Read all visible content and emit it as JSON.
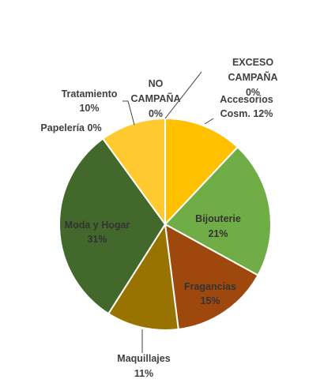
{
  "chart_data": {
    "type": "pie",
    "title": "",
    "slices": [
      {
        "label": "EXCESO CAMPAÑA",
        "value": 0,
        "value_label": "0%",
        "color": "#FFC000"
      },
      {
        "label": "Accesorios Cosm.",
        "value": 12,
        "value_label": "12%",
        "color": "#FFC000"
      },
      {
        "label": "Bijouterie",
        "value": 21,
        "value_label": "21%",
        "color": "#70AD47"
      },
      {
        "label": "Fragancias",
        "value": 15,
        "value_label": "15%",
        "color": "#9E480E"
      },
      {
        "label": "Maquillajes",
        "value": 11,
        "value_label": "11%",
        "color": "#997300"
      },
      {
        "label": "Moda y Hogar",
        "value": 31,
        "value_label": "31%",
        "color": "#43682B"
      },
      {
        "label": "Papelería",
        "value": 0,
        "value_label": "0%",
        "color": "#43682B"
      },
      {
        "label": "Tratamiento",
        "value": 10,
        "value_label": "10%",
        "color": "#FFCA30"
      },
      {
        "label": "NO CAMPAÑA",
        "value": 0,
        "value_label": "0%",
        "color": "#FFCA30"
      }
    ],
    "label_color_dark": "#404040",
    "label_color_inside": "#333333",
    "edge_color": "#ffffff",
    "legend": "none"
  }
}
